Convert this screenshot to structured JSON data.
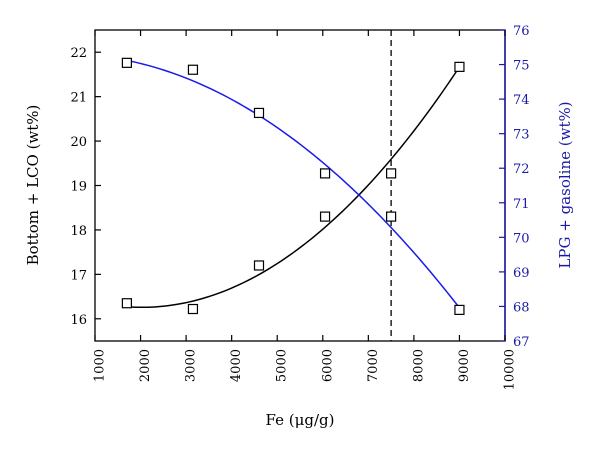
{
  "chart_data": {
    "type": "scatter",
    "title": "",
    "xlabel": "Fe (μg/g)",
    "ylabel_left": "Bottom + LCO (wt%)",
    "ylabel_right": "LPG + gasoline (wt%)",
    "xlim": [
      1000,
      10000
    ],
    "ylim_left": [
      15.5,
      22.5
    ],
    "ylim_right": [
      67,
      76
    ],
    "x_ticks": [
      "1000",
      "2000",
      "3000",
      "4000",
      "5000",
      "6000",
      "7000",
      "8000",
      "9000",
      "10000"
    ],
    "y_left_ticks": [
      "16",
      "17",
      "18",
      "19",
      "20",
      "21",
      "22"
    ],
    "y_right_ticks": [
      "67",
      "68",
      "69",
      "70",
      "71",
      "72",
      "73",
      "74",
      "75",
      "76"
    ],
    "reference_line_x": 7500,
    "grid": false,
    "colors": {
      "left_axis": "#000000",
      "right_axis": "#1a1aa6",
      "fit_left": "#000000",
      "fit_right": "#1a1aee"
    },
    "series": [
      {
        "axis": "left",
        "marker": "open-square",
        "x": [
          1700,
          3150,
          4600,
          6050,
          7500,
          9000
        ],
        "y": [
          16.35,
          16.22,
          17.2,
          18.3,
          18.3,
          21.67
        ]
      },
      {
        "axis": "right",
        "marker": "open-square",
        "x": [
          1700,
          3150,
          4600,
          6050,
          7500,
          9000
        ],
        "y": [
          75.05,
          74.85,
          73.6,
          71.85,
          71.85,
          67.9
        ]
      }
    ],
    "fits": [
      {
        "axis": "left",
        "kind": "quadratic",
        "x_range": [
          1700,
          9000
        ],
        "anchor_points": [
          [
            1700,
            16.27
          ],
          [
            6050,
            18.06
          ],
          [
            9000,
            21.67
          ]
        ]
      },
      {
        "axis": "right",
        "kind": "quadratic",
        "x_range": [
          1700,
          9000
        ],
        "anchor_points": [
          [
            1700,
            75.12
          ],
          [
            6050,
            72.11
          ],
          [
            9000,
            67.96
          ]
        ]
      }
    ]
  }
}
